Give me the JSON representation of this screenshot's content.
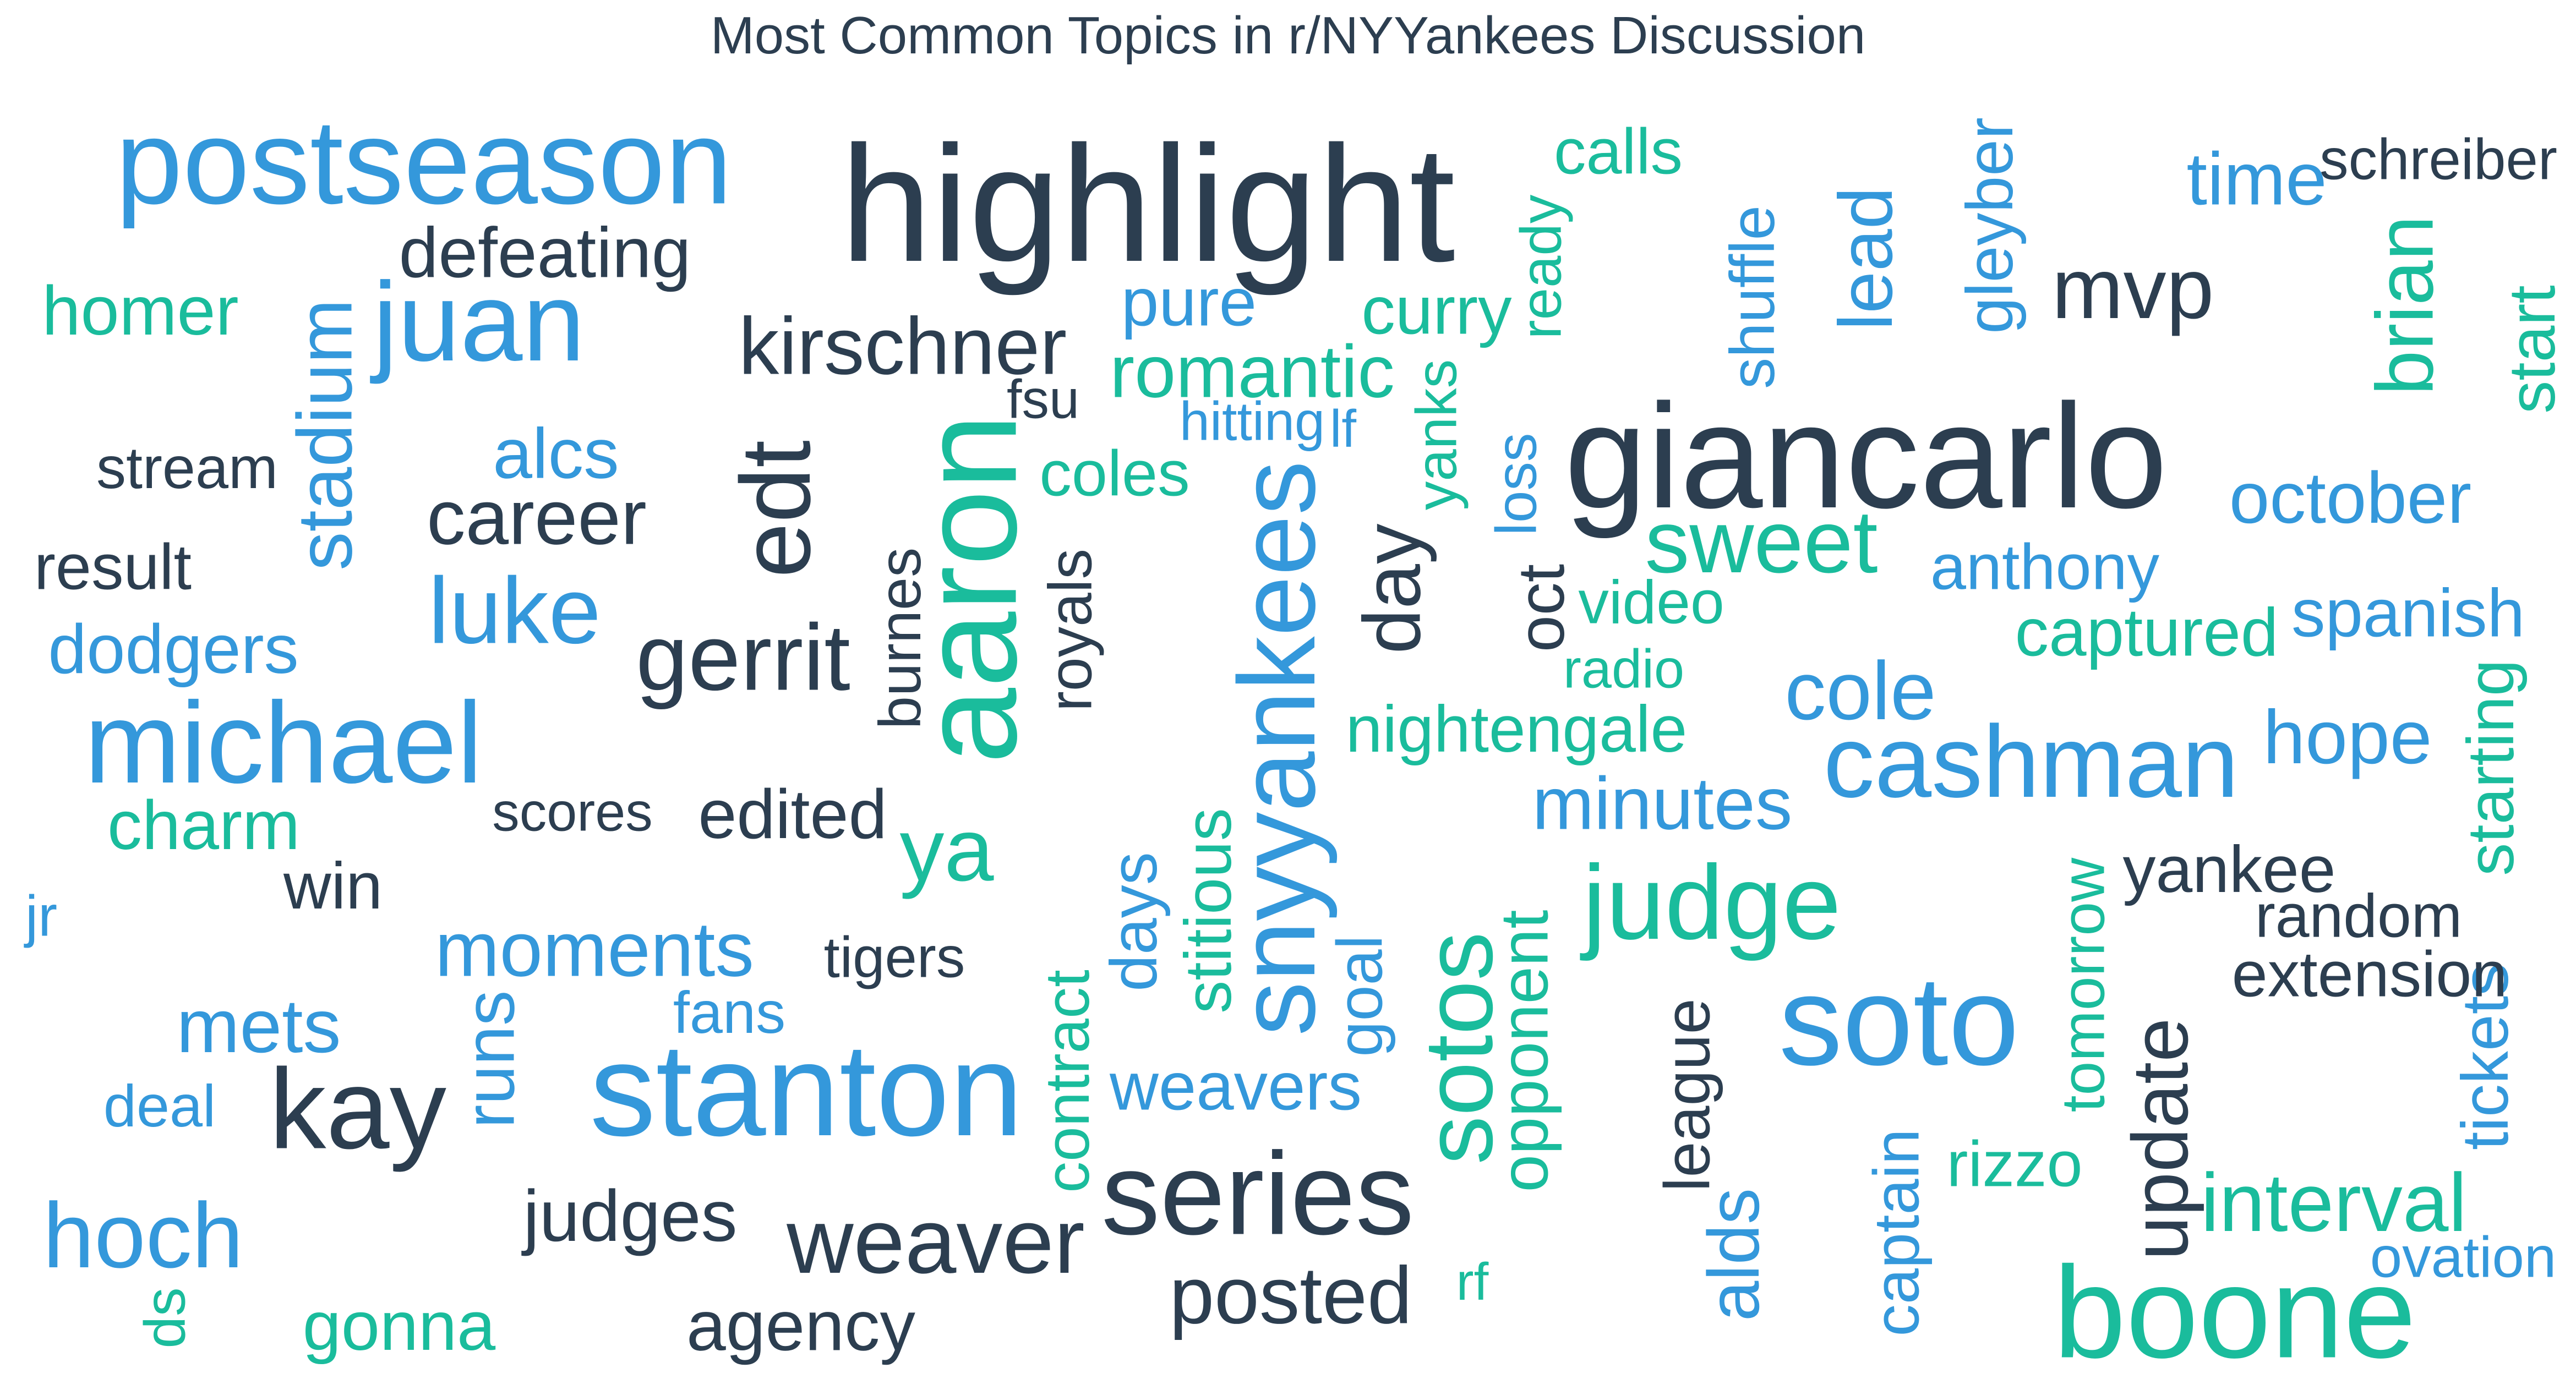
{
  "chart_data": {
    "type": "wordcloud",
    "title": "Most Common Topics in r/NYYankees Discussion",
    "colors": {
      "dark": "#2c3e50",
      "blue": "#3498db",
      "green": "#1abc9c"
    },
    "words": [
      {
        "text": "highlight",
        "weight": 10.0,
        "color": "dark",
        "vertical": false
      },
      {
        "text": "giancarlo",
        "weight": 9.0,
        "color": "dark",
        "vertical": false
      },
      {
        "text": "aaron",
        "weight": 8.3,
        "color": "green",
        "vertical": true
      },
      {
        "text": "stanton",
        "weight": 8.0,
        "color": "blue",
        "vertical": false
      },
      {
        "text": "boone",
        "weight": 7.9,
        "color": "green",
        "vertical": false
      },
      {
        "text": "soto",
        "weight": 7.7,
        "color": "blue",
        "vertical": false
      },
      {
        "text": "postseason",
        "weight": 7.3,
        "color": "blue",
        "vertical": false
      },
      {
        "text": "series",
        "weight": 7.1,
        "color": "dark",
        "vertical": false
      },
      {
        "text": "michael",
        "weight": 7.0,
        "color": "blue",
        "vertical": false
      },
      {
        "text": "kay",
        "weight": 6.9,
        "color": "dark",
        "vertical": false
      },
      {
        "text": "juan",
        "weight": 6.8,
        "color": "blue",
        "vertical": false
      },
      {
        "text": "snyyankees",
        "weight": 6.6,
        "color": "blue",
        "vertical": true
      },
      {
        "text": "judge",
        "weight": 6.4,
        "color": "green",
        "vertical": false
      },
      {
        "text": "cashman",
        "weight": 6.2,
        "color": "blue",
        "vertical": false
      },
      {
        "text": "edt",
        "weight": 6.0,
        "color": "dark",
        "vertical": true
      },
      {
        "text": "sotos",
        "weight": 5.9,
        "color": "green",
        "vertical": true
      },
      {
        "text": "gerrit",
        "weight": 5.7,
        "color": "dark",
        "vertical": false
      },
      {
        "text": "luke",
        "weight": 5.7,
        "color": "blue",
        "vertical": false
      },
      {
        "text": "weaver",
        "weight": 5.6,
        "color": "dark",
        "vertical": false
      },
      {
        "text": "hoch",
        "weight": 5.6,
        "color": "blue",
        "vertical": false
      },
      {
        "text": "ya",
        "weight": 5.4,
        "color": "green",
        "vertical": false
      },
      {
        "text": "sweet",
        "weight": 5.4,
        "color": "green",
        "vertical": false
      },
      {
        "text": "mvp",
        "weight": 5.2,
        "color": "dark",
        "vertical": false
      },
      {
        "text": "interval",
        "weight": 5.0,
        "color": "green",
        "vertical": false
      },
      {
        "text": "cole",
        "weight": 5.0,
        "color": "blue",
        "vertical": false
      },
      {
        "text": "kirschner",
        "weight": 4.9,
        "color": "dark",
        "vertical": false
      },
      {
        "text": "posted",
        "weight": 4.9,
        "color": "dark",
        "vertical": false
      },
      {
        "text": "brian",
        "weight": 4.9,
        "color": "green",
        "vertical": true
      },
      {
        "text": "day",
        "weight": 4.9,
        "color": "dark",
        "vertical": true
      },
      {
        "text": "update",
        "weight": 4.8,
        "color": "dark",
        "vertical": true
      },
      {
        "text": "career",
        "weight": 4.7,
        "color": "dark",
        "vertical": false
      },
      {
        "text": "moments",
        "weight": 4.7,
        "color": "blue",
        "vertical": false
      },
      {
        "text": "stadium",
        "weight": 4.7,
        "color": "blue",
        "vertical": true
      },
      {
        "text": "mets",
        "weight": 4.6,
        "color": "blue",
        "vertical": false
      },
      {
        "text": "hope",
        "weight": 4.6,
        "color": "blue",
        "vertical": false
      },
      {
        "text": "lead",
        "weight": 4.6,
        "color": "blue",
        "vertical": true
      },
      {
        "text": "romantic",
        "weight": 4.5,
        "color": "green",
        "vertical": false
      },
      {
        "text": "time",
        "weight": 4.5,
        "color": "blue",
        "vertical": false
      },
      {
        "text": "minutes",
        "weight": 4.5,
        "color": "blue",
        "vertical": false
      },
      {
        "text": "judges",
        "weight": 4.4,
        "color": "dark",
        "vertical": false
      },
      {
        "text": "alds",
        "weight": 4.4,
        "color": "blue",
        "vertical": true
      },
      {
        "text": "october",
        "weight": 4.4,
        "color": "blue",
        "vertical": false
      },
      {
        "text": "alcs",
        "weight": 4.3,
        "color": "blue",
        "vertical": false
      },
      {
        "text": "defeating",
        "weight": 4.3,
        "color": "dark",
        "vertical": false
      },
      {
        "text": "runs",
        "weight": 4.3,
        "color": "blue",
        "vertical": true
      },
      {
        "text": "agency",
        "weight": 4.3,
        "color": "dark",
        "vertical": false
      },
      {
        "text": "homer",
        "weight": 4.2,
        "color": "green",
        "vertical": false
      },
      {
        "text": "dodgers",
        "weight": 4.2,
        "color": "blue",
        "vertical": false
      },
      {
        "text": "charm",
        "weight": 4.2,
        "color": "green",
        "vertical": false
      },
      {
        "text": "gonna",
        "weight": 4.2,
        "color": "green",
        "vertical": false
      },
      {
        "text": "edited",
        "weight": 4.2,
        "color": "dark",
        "vertical": false
      },
      {
        "text": "weavers",
        "weight": 4.1,
        "color": "blue",
        "vertical": false
      },
      {
        "text": "curry",
        "weight": 4.1,
        "color": "green",
        "vertical": false
      },
      {
        "text": "pure",
        "weight": 4.1,
        "color": "blue",
        "vertical": false
      },
      {
        "text": "captured",
        "weight": 4.1,
        "color": "green",
        "vertical": false
      },
      {
        "text": "spanish",
        "weight": 4.1,
        "color": "blue",
        "vertical": false
      },
      {
        "text": "opponent",
        "weight": 4.1,
        "color": "green",
        "vertical": true
      },
      {
        "text": "yankee",
        "weight": 4.0,
        "color": "dark",
        "vertical": false
      },
      {
        "text": "gleyber",
        "weight": 4.0,
        "color": "blue",
        "vertical": true
      },
      {
        "text": "nightengale",
        "weight": 4.0,
        "color": "green",
        "vertical": false
      },
      {
        "text": "days",
        "weight": 4.0,
        "color": "blue",
        "vertical": true
      },
      {
        "text": "stitious",
        "weight": 4.0,
        "color": "green",
        "vertical": true
      },
      {
        "text": "win",
        "weight": 4.0,
        "color": "dark",
        "vertical": false
      },
      {
        "text": "tickets",
        "weight": 4.0,
        "color": "blue",
        "vertical": true
      },
      {
        "text": "starting",
        "weight": 4.0,
        "color": "green",
        "vertical": true
      },
      {
        "text": "start",
        "weight": 4.0,
        "color": "green",
        "vertical": true
      },
      {
        "text": "oct",
        "weight": 4.0,
        "color": "dark",
        "vertical": true
      },
      {
        "text": "calls",
        "weight": 3.9,
        "color": "green",
        "vertical": false
      },
      {
        "text": "coles",
        "weight": 3.9,
        "color": "green",
        "vertical": false
      },
      {
        "text": "league",
        "weight": 3.9,
        "color": "dark",
        "vertical": true
      },
      {
        "text": "extension",
        "weight": 3.9,
        "color": "dark",
        "vertical": false
      },
      {
        "text": "rizzo",
        "weight": 3.9,
        "color": "green",
        "vertical": false
      },
      {
        "text": "result",
        "weight": 3.9,
        "color": "dark",
        "vertical": false
      },
      {
        "text": "anthony",
        "weight": 3.9,
        "color": "blue",
        "vertical": false
      },
      {
        "text": "captain",
        "weight": 3.9,
        "color": "blue",
        "vertical": true
      },
      {
        "text": "goal",
        "weight": 3.9,
        "color": "blue",
        "vertical": true
      },
      {
        "text": "shuffle",
        "weight": 3.8,
        "color": "blue",
        "vertical": true
      },
      {
        "text": "contract",
        "weight": 3.8,
        "color": "green",
        "vertical": true
      },
      {
        "text": "video",
        "weight": 3.7,
        "color": "green",
        "vertical": false
      },
      {
        "text": "random",
        "weight": 3.7,
        "color": "dark",
        "vertical": false
      },
      {
        "text": "tomorrow",
        "weight": 3.7,
        "color": "green",
        "vertical": true
      },
      {
        "text": "royals",
        "weight": 3.7,
        "color": "dark",
        "vertical": true
      },
      {
        "text": "burnes",
        "weight": 3.6,
        "color": "dark",
        "vertical": true
      },
      {
        "text": "stream",
        "weight": 3.6,
        "color": "dark",
        "vertical": false
      },
      {
        "text": "deal",
        "weight": 3.6,
        "color": "blue",
        "vertical": false
      },
      {
        "text": "fans",
        "weight": 3.6,
        "color": "blue",
        "vertical": false
      },
      {
        "text": "tigers",
        "weight": 3.5,
        "color": "dark",
        "vertical": false
      },
      {
        "text": "yanks",
        "weight": 3.5,
        "color": "green",
        "vertical": true
      },
      {
        "text": "loss",
        "weight": 3.5,
        "color": "blue",
        "vertical": true
      },
      {
        "text": "ovation",
        "weight": 3.5,
        "color": "blue",
        "vertical": false
      },
      {
        "text": "ready",
        "weight": 3.5,
        "color": "green",
        "vertical": true
      },
      {
        "text": "schreiber",
        "weight": 3.5,
        "color": "dark",
        "vertical": false
      },
      {
        "text": "jr",
        "weight": 3.5,
        "color": "blue",
        "vertical": false
      },
      {
        "text": "ds",
        "weight": 3.5,
        "color": "green",
        "vertical": true
      },
      {
        "text": "scores",
        "weight": 3.3,
        "color": "dark",
        "vertical": false
      },
      {
        "text": "hitting",
        "weight": 3.3,
        "color": "blue",
        "vertical": false
      },
      {
        "text": "radio",
        "weight": 3.3,
        "color": "green",
        "vertical": false
      },
      {
        "text": "fsu",
        "weight": 3.3,
        "color": "dark",
        "vertical": false
      },
      {
        "text": "lf",
        "weight": 3.2,
        "color": "blue",
        "vertical": false
      },
      {
        "text": "rf",
        "weight": 3.2,
        "color": "green",
        "vertical": false
      }
    ]
  }
}
